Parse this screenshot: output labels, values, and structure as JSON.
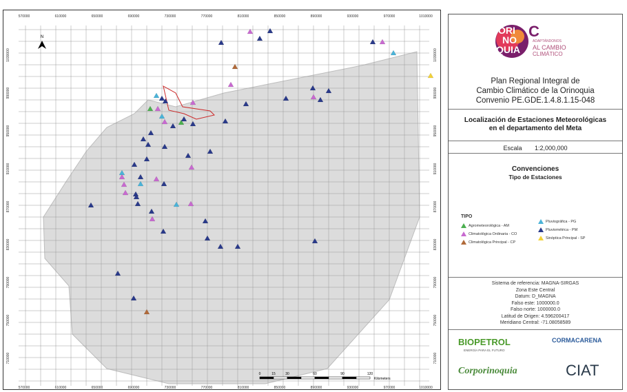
{
  "map": {
    "x_ticks": [
      "570000",
      "610000",
      "650000",
      "690000",
      "730000",
      "770000",
      "810000",
      "850000",
      "890000",
      "930000",
      "970000",
      "1010000"
    ],
    "y_ticks": [
      "1030000",
      "990000",
      "950000",
      "910000",
      "870000",
      "830000",
      "790000",
      "750000",
      "710000"
    ],
    "north_label": "N",
    "scale_labels": [
      "0",
      "15",
      "30",
      "60",
      "90",
      "120"
    ],
    "scale_unit": "Kilometers",
    "colors": {
      "agrometeorologica": "#4caf50",
      "climatologica_ordinaria": "#c86ad0",
      "climatologica_principal": "#b06a3a",
      "pluviografica": "#4ab3d8",
      "pluviometrica": "#2a3a8a",
      "sinoptica_principal": "#f2d23a",
      "department": "#dcdcdc",
      "grid": "#999999",
      "boundary_red": "#cc2a2a"
    }
  },
  "panel": {
    "logo": {
      "ori": "ORI",
      "no": "NO",
      "quia": "QUIA",
      "c": "C",
      "tag1": "ADAPTÁNDONOS",
      "tag2": "AL CAMBIO",
      "tag3": "CLIMÁTICO"
    },
    "plan_line1": "Plan Regional Integral de",
    "plan_line2": "Cambio Climático de la Orinoquia",
    "plan_line3": "Convenio PE.GDE.1.4.8.1.15-048",
    "loc_line1": "Localización de Estaciones Meteorológicas",
    "loc_line2": "en el departamento del Meta",
    "escala_label": "Escala",
    "escala_value": "1:2,000,000",
    "convenciones": "Convenciones",
    "tipo_estaciones": "Tipo de Estaciones",
    "legend_head": "TIPO",
    "legend": [
      {
        "label": "Agrometeorológica - AM",
        "color": "#4caf50"
      },
      {
        "label": "Climatológica Ordinaria - CO",
        "color": "#c86ad0"
      },
      {
        "label": "Climatológica Principal - CP",
        "color": "#b06a3a"
      },
      {
        "label": "Pluviográfica - PG",
        "color": "#4ab3d8"
      },
      {
        "label": "Pluviométrica - PM",
        "color": "#2a3a8a"
      },
      {
        "label": "Sinóptica Principal - SP",
        "color": "#f2d23a"
      }
    ],
    "ref_lines": [
      "Sistema de referencia: MAGNA-SIRGAS",
      "Zona Este Central",
      "Datum: D_MAGNA",
      "Falso este: 1000000.0",
      "Falso norte: 1000000.0",
      "Latitud de Origen: 4.596200417",
      "Meridiano Central: -71.08058589"
    ],
    "logos": {
      "bio_petrol": "BIOPETROL",
      "bio_petrol_sub": "ENERGÍA PARA EL FUTURO",
      "cormacarena": "CORMACARENA",
      "corporinoquia": "Corporinoquia",
      "ciat": "CIAT"
    }
  }
}
